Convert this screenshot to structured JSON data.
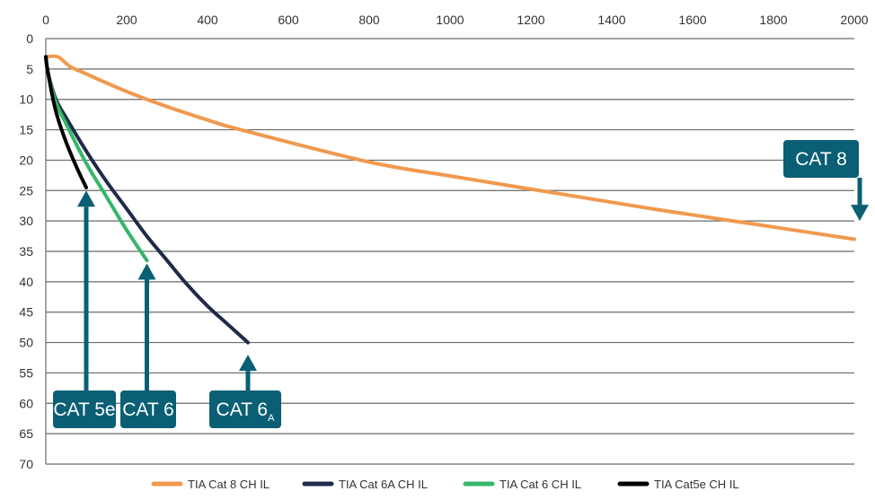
{
  "chart_data": {
    "type": "line",
    "x_axis": {
      "min": 0,
      "max": 2000,
      "ticks": [
        0,
        200,
        400,
        600,
        800,
        1000,
        1200,
        1400,
        1600,
        1800,
        2000
      ],
      "position": "top"
    },
    "y_axis": {
      "min": 0,
      "max": 70,
      "ticks": [
        0,
        5,
        10,
        15,
        20,
        25,
        30,
        35,
        40,
        45,
        50,
        55,
        60,
        65,
        70
      ],
      "inverted": true
    },
    "grid": "horizontal",
    "legend_position": "bottom",
    "series": [
      {
        "name": "TIA Cat 8 CH IL",
        "color": "#F0994F",
        "x": [
          0,
          30,
          60,
          100,
          150,
          250,
          400,
          500,
          800,
          1000,
          1250,
          1500,
          1750,
          2000
        ],
        "y": [
          3,
          3,
          4.6,
          5.8,
          7.3,
          10,
          13.4,
          15.3,
          20.3,
          22.6,
          25.3,
          28,
          30.5,
          33
        ]
      },
      {
        "name": "TIA Cat 6A CH IL",
        "color": "#1F2A4A",
        "x": [
          0,
          5,
          25,
          50,
          100,
          150,
          200,
          250,
          300,
          350,
          400,
          450,
          500
        ],
        "y": [
          3,
          5.5,
          10,
          13,
          18.5,
          23.5,
          28,
          32.5,
          36.5,
          40.5,
          44,
          47,
          50
        ]
      },
      {
        "name": "TIA Cat 6 CH IL",
        "color": "#34B768",
        "x": [
          0,
          5,
          25,
          50,
          100,
          150,
          200,
          250
        ],
        "y": [
          3,
          5.5,
          10.5,
          14,
          20.5,
          26,
          31.5,
          36.5
        ]
      },
      {
        "name": "TIA Cat5e CH IL",
        "color": "#000000",
        "x": [
          0,
          5,
          25,
          50,
          75,
          100
        ],
        "y": [
          3,
          5.5,
          12,
          17,
          21,
          24.5
        ]
      }
    ],
    "callouts": [
      {
        "label": "CAT 8",
        "sub": "",
        "target_x": 2000,
        "target_y": 30,
        "direction": "down"
      },
      {
        "label": "CAT 5e",
        "sub": "",
        "target_x": 100,
        "target_y": 25,
        "direction": "up"
      },
      {
        "label": "CAT 6",
        "sub": "",
        "target_x": 250,
        "target_y": 37,
        "direction": "up"
      },
      {
        "label": "CAT 6",
        "sub": "A",
        "target_x": 500,
        "target_y": 52,
        "direction": "up"
      }
    ]
  },
  "colors": {
    "callout": "#0A5F74",
    "grid": "#6A6A6A"
  }
}
